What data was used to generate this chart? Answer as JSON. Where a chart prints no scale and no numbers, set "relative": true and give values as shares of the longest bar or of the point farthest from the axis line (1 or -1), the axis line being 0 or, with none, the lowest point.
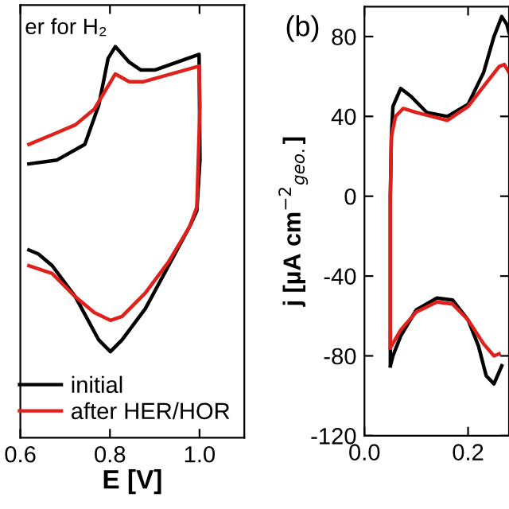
{
  "chart_data": [
    {
      "type": "line",
      "relative": true,
      "xlabel": "E [V]",
      "xlim": [
        0.6,
        1.1
      ],
      "xticks": [
        {
          "value": 0.6,
          "label": "0.6"
        },
        {
          "value": 0.8,
          "label": "0.8"
        },
        {
          "value": 1.0,
          "label": "1.0"
        }
      ],
      "tick_labels": "x",
      "annotations": [
        "er for H₂"
      ],
      "legend": "bottom right",
      "grid": false,
      "line_style": "solid",
      "marker": "none",
      "series": [
        {
          "name": "initial",
          "color": "#000000",
          "x": [
            0.619,
            0.682,
            0.744,
            0.775,
            0.796,
            0.812,
            0.843,
            0.869,
            0.9,
            0.999,
            1.001,
            0.994,
            0.978,
            0.931,
            0.879,
            0.827,
            0.801,
            0.775,
            0.723,
            0.671,
            0.64,
            0.619
          ],
          "values": [
            0.7,
            0.71,
            0.75,
            0.85,
            0.97,
            1.0,
            0.96,
            0.94,
            0.94,
            0.98,
            0.71,
            0.58,
            0.54,
            0.44,
            0.33,
            0.25,
            0.22,
            0.25,
            0.36,
            0.44,
            0.47,
            0.48
          ]
        },
        {
          "name": "after HER/HOR",
          "color": "#e0201b",
          "x": [
            0.619,
            0.682,
            0.723,
            0.765,
            0.812,
            0.843,
            0.874,
            0.999,
            1.001,
            0.994,
            0.978,
            0.931,
            0.879,
            0.827,
            0.801,
            0.765,
            0.723,
            0.671,
            0.619
          ],
          "values": [
            0.75,
            0.78,
            0.8,
            0.84,
            0.93,
            0.91,
            0.91,
            0.95,
            0.85,
            0.59,
            0.54,
            0.45,
            0.37,
            0.31,
            0.3,
            0.32,
            0.36,
            0.42,
            0.44
          ]
        }
      ]
    },
    {
      "type": "line",
      "ylabel": "j [µA cm$^{−2}$$_{geo.}$]",
      "xlim": [
        0,
        0.279
      ],
      "xticks": [
        {
          "value": 0.0,
          "label": "0.0"
        },
        {
          "value": 0.2,
          "label": "0.2"
        }
      ],
      "ylim": [
        -120,
        95
      ],
      "yticks": [
        -120,
        -80,
        -40,
        0,
        40,
        80
      ],
      "annotations": [
        "(b)"
      ],
      "grid": false,
      "line_style": "solid",
      "marker": "none",
      "series": [
        {
          "color": "#000000",
          "x": [
            0.05,
            0.05,
            0.052,
            0.055,
            0.07,
            0.09,
            0.12,
            0.16,
            0.2,
            0.23,
            0.25,
            0.265,
            0.275,
            0.279,
            null,
            0.265,
            0.25,
            0.235,
            0.22,
            0.2,
            0.17,
            0.14,
            0.1,
            0.07,
            0.055,
            0.05
          ],
          "values": [
            -85,
            0,
            30,
            45,
            54,
            50,
            42,
            40,
            46,
            62,
            80,
            90,
            86,
            82,
            null,
            -85,
            -94,
            -90,
            -75,
            -62,
            -52,
            -51,
            -57,
            -70,
            -80,
            -85
          ]
        },
        {
          "color": "#e0201b",
          "x": [
            0.05,
            0.05,
            0.052,
            0.06,
            0.075,
            0.1,
            0.16,
            0.2,
            0.23,
            0.26,
            0.27,
            0.279,
            null,
            0.26,
            0.25,
            0.23,
            0.2,
            0.17,
            0.14,
            0.1,
            0.07,
            0.05
          ],
          "values": [
            -76,
            0,
            30,
            40,
            44,
            42,
            38,
            45,
            55,
            65,
            66,
            62,
            null,
            -79,
            -80,
            -74,
            -62,
            -54,
            -53,
            -58,
            -67,
            -76
          ]
        }
      ]
    }
  ]
}
